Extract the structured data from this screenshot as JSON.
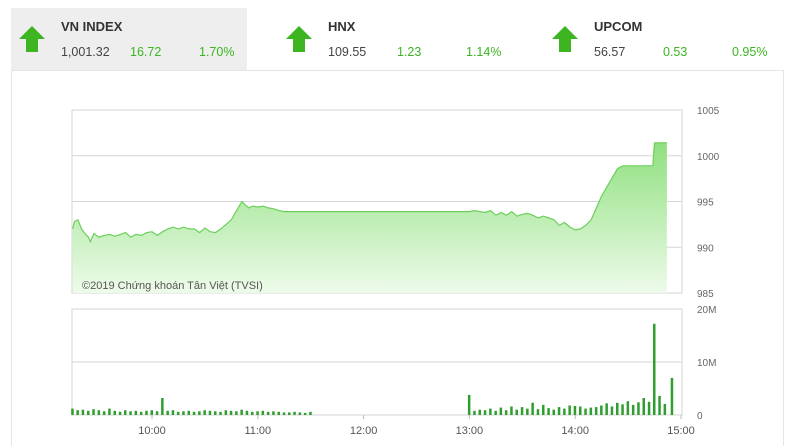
{
  "indices": [
    {
      "name": "VN INDEX",
      "value": "1,001.32",
      "change": "16.72",
      "percent": "1.70%",
      "direction": "up",
      "active": true
    },
    {
      "name": "HNX",
      "value": "109.55",
      "change": "1.23",
      "percent": "1.14%",
      "direction": "up",
      "active": false
    },
    {
      "name": "UPCOM",
      "value": "56.57",
      "change": "0.53",
      "percent": "0.95%",
      "direction": "up",
      "active": false
    }
  ],
  "colors": {
    "up": "#3cb521",
    "area_top": "#8fe07f",
    "area_bottom": "#eefbea",
    "line": "#6ccf5b",
    "volume": "#2e9e2e",
    "grid": "#d6d6d6"
  },
  "watermark": "©2019 Chứng khoán Tân Việt (TVSI)",
  "chart_data": {
    "type": "area",
    "price_panel": {
      "x_unit": "time",
      "yticks": [
        "1005",
        "1000",
        "995",
        "990",
        "985"
      ],
      "ylim": [
        985,
        1005
      ],
      "points": [
        [
          "09:15",
          992.0
        ],
        [
          "09:16",
          992.8
        ],
        [
          "09:18",
          993.0
        ],
        [
          "09:20",
          992.0
        ],
        [
          "09:22",
          991.5
        ],
        [
          "09:24",
          991.1
        ],
        [
          "09:25",
          990.6
        ],
        [
          "09:27",
          991.5
        ],
        [
          "09:30",
          991.1
        ],
        [
          "09:33",
          991.3
        ],
        [
          "09:36",
          991.4
        ],
        [
          "09:39",
          991.2
        ],
        [
          "09:42",
          991.4
        ],
        [
          "09:45",
          991.6
        ],
        [
          "09:48",
          991.1
        ],
        [
          "09:51",
          991.4
        ],
        [
          "09:54",
          991.3
        ],
        [
          "09:57",
          991.6
        ],
        [
          "10:00",
          991.7
        ],
        [
          "10:03",
          991.3
        ],
        [
          "10:06",
          991.7
        ],
        [
          "10:09",
          992.0
        ],
        [
          "10:12",
          992.2
        ],
        [
          "10:15",
          992.0
        ],
        [
          "10:18",
          992.2
        ],
        [
          "10:21",
          992.0
        ],
        [
          "10:24",
          992.0
        ],
        [
          "10:27",
          991.6
        ],
        [
          "10:30",
          992.1
        ],
        [
          "10:33",
          991.7
        ],
        [
          "10:36",
          991.6
        ],
        [
          "10:39",
          992.0
        ],
        [
          "10:42",
          992.5
        ],
        [
          "10:45",
          993.0
        ],
        [
          "10:48",
          994.0
        ],
        [
          "10:51",
          995.0
        ],
        [
          "10:53",
          994.6
        ],
        [
          "10:55",
          994.3
        ],
        [
          "10:57",
          994.5
        ],
        [
          "11:00",
          994.4
        ],
        [
          "11:03",
          994.5
        ],
        [
          "11:06",
          994.3
        ],
        [
          "11:09",
          994.2
        ],
        [
          "11:12",
          994.0
        ],
        [
          "11:15",
          993.9
        ],
        [
          "11:20",
          993.9
        ],
        [
          "11:25",
          993.9
        ],
        [
          "11:30",
          993.9
        ],
        [
          "13:00",
          993.9
        ],
        [
          "13:03",
          994.0
        ],
        [
          "13:06",
          993.9
        ],
        [
          "13:09",
          993.8
        ],
        [
          "13:12",
          994.0
        ],
        [
          "13:15",
          993.5
        ],
        [
          "13:18",
          993.8
        ],
        [
          "13:21",
          993.5
        ],
        [
          "13:24",
          993.9
        ],
        [
          "13:27",
          993.4
        ],
        [
          "13:30",
          993.6
        ],
        [
          "13:33",
          993.7
        ],
        [
          "13:36",
          993.5
        ],
        [
          "13:39",
          993.2
        ],
        [
          "13:42",
          993.4
        ],
        [
          "13:45",
          993.2
        ],
        [
          "13:48",
          993.0
        ],
        [
          "13:51",
          992.4
        ],
        [
          "13:54",
          992.7
        ],
        [
          "13:57",
          992.2
        ],
        [
          "14:00",
          991.9
        ],
        [
          "14:03",
          992.0
        ],
        [
          "14:06",
          992.4
        ],
        [
          "14:09",
          993.0
        ],
        [
          "14:12",
          994.3
        ],
        [
          "14:15",
          995.6
        ],
        [
          "14:18",
          996.6
        ],
        [
          "14:21",
          997.6
        ],
        [
          "14:24",
          998.6
        ],
        [
          "14:27",
          998.9
        ],
        [
          "14:30",
          998.9
        ],
        [
          "14:35",
          998.9
        ],
        [
          "14:40",
          998.9
        ],
        [
          "14:44",
          998.9
        ],
        [
          "14:45",
          1001.4
        ],
        [
          "14:48",
          1001.4
        ],
        [
          "14:52",
          1001.4
        ]
      ]
    },
    "volume_panel": {
      "yticks": [
        "20M",
        "10M",
        "0"
      ],
      "ylim": [
        0,
        20
      ],
      "unit": "M",
      "x": [
        "09:15",
        "09:18",
        "09:21",
        "09:24",
        "09:27",
        "09:30",
        "09:33",
        "09:36",
        "09:39",
        "09:42",
        "09:45",
        "09:48",
        "09:51",
        "09:54",
        "09:57",
        "10:00",
        "10:03",
        "10:06",
        "10:09",
        "10:12",
        "10:15",
        "10:18",
        "10:21",
        "10:24",
        "10:27",
        "10:30",
        "10:33",
        "10:36",
        "10:39",
        "10:42",
        "10:45",
        "10:48",
        "10:51",
        "10:54",
        "10:57",
        "11:00",
        "11:03",
        "11:06",
        "11:09",
        "11:12",
        "11:15",
        "11:18",
        "11:21",
        "11:24",
        "11:27",
        "11:30",
        "13:00",
        "13:03",
        "13:06",
        "13:09",
        "13:12",
        "13:15",
        "13:18",
        "13:21",
        "13:24",
        "13:27",
        "13:30",
        "13:33",
        "13:36",
        "13:39",
        "13:42",
        "13:45",
        "13:48",
        "13:51",
        "13:54",
        "13:57",
        "14:00",
        "14:03",
        "14:06",
        "14:09",
        "14:12",
        "14:15",
        "14:18",
        "14:21",
        "14:24",
        "14:27",
        "14:30",
        "14:33",
        "14:36",
        "14:39",
        "14:42",
        "14:45",
        "14:48",
        "14:51",
        "14:55"
      ],
      "values": [
        1.2,
        0.9,
        1.0,
        0.8,
        1.1,
        0.9,
        0.7,
        1.2,
        0.8,
        0.6,
        0.9,
        0.7,
        0.8,
        0.6,
        0.8,
        0.9,
        0.7,
        3.2,
        0.8,
        0.9,
        0.6,
        0.7,
        0.8,
        0.6,
        0.7,
        0.9,
        0.8,
        0.7,
        0.6,
        0.9,
        0.8,
        0.7,
        1.0,
        0.8,
        0.6,
        0.7,
        0.8,
        0.6,
        0.7,
        0.6,
        0.5,
        0.5,
        0.6,
        0.5,
        0.4,
        0.6,
        3.8,
        0.8,
        1.0,
        0.9,
        1.2,
        0.8,
        1.4,
        0.9,
        1.6,
        1.0,
        1.5,
        1.2,
        2.3,
        1.1,
        1.9,
        1.3,
        1.0,
        1.5,
        1.2,
        1.8,
        1.7,
        1.6,
        1.2,
        1.4,
        1.5,
        1.8,
        2.2,
        1.6,
        2.3,
        2.0,
        2.6,
        1.9,
        2.4,
        3.2,
        2.5,
        17.2,
        3.6,
        2.1,
        7.0
      ]
    },
    "x_ticks": [
      "10:00",
      "11:00",
      "12:00",
      "13:00",
      "14:00",
      "15:00"
    ]
  }
}
